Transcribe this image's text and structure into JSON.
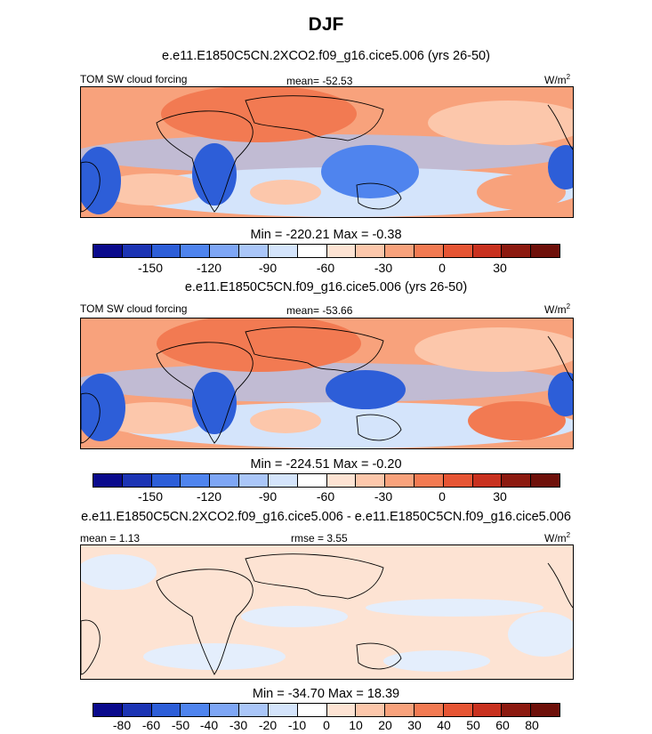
{
  "title": "DJF",
  "colors": {
    "blue_scale": [
      "#0a0a8c",
      "#1c34b4",
      "#2d5ed8",
      "#4f84ee",
      "#7ea6f5",
      "#aac6f8",
      "#d4e4fb"
    ],
    "red_scale": [
      "#fde3d3",
      "#fcc7ab",
      "#f8a27c",
      "#f27a52",
      "#e65534",
      "#c8311f",
      "#8c1a10"
    ],
    "land": "#000000"
  },
  "panels": [
    {
      "case_title": "e.e11.E1850C5CN.2XCO2.f09_g16.cice5.006 (yrs 26-50)",
      "left_label": "TOM SW cloud forcing",
      "center_label": "mean= -52.53",
      "units": "W/m",
      "units_sup": "2",
      "minmax": "Min = -220.21 Max =  -0.38",
      "tick_labels": [
        "-150",
        "-120",
        "-90",
        "-60",
        "-30",
        "0",
        "30"
      ]
    },
    {
      "case_title": "e.e11.E1850C5CN.f09_g16.cice5.006 (yrs 26-50)",
      "left_label": "TOM SW cloud forcing",
      "center_label": "mean= -53.66",
      "units": "W/m",
      "units_sup": "2",
      "minmax": "Min = -224.51 Max =  -0.20",
      "tick_labels": [
        "-150",
        "-120",
        "-90",
        "-60",
        "-30",
        "0",
        "30"
      ]
    },
    {
      "case_title": "e.e11.E1850C5CN.2XCO2.f09_g16.cice5.006 - e.e11.E1850C5CN.f09_g16.cice5.006",
      "left_label": "mean =   1.13",
      "center_label": "rmse =   3.55",
      "units": "W/m",
      "units_sup": "2",
      "minmax": "Min = -34.70 Max =  18.39",
      "tick_labels": [
        "-80",
        "-60",
        "-50",
        "-40",
        "-30",
        "-20",
        "-10",
        "0",
        "10",
        "20",
        "30",
        "40",
        "50",
        "60",
        "80"
      ]
    }
  ]
}
